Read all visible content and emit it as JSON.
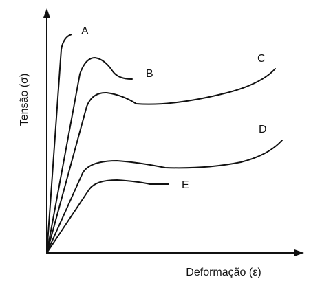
{
  "axes": {
    "y_label": "Tensão (σ)",
    "x_label": "Deformação (ε)"
  },
  "curves": [
    {
      "label": "A"
    },
    {
      "label": "B"
    },
    {
      "label": "C"
    },
    {
      "label": "D"
    },
    {
      "label": "E"
    }
  ]
}
